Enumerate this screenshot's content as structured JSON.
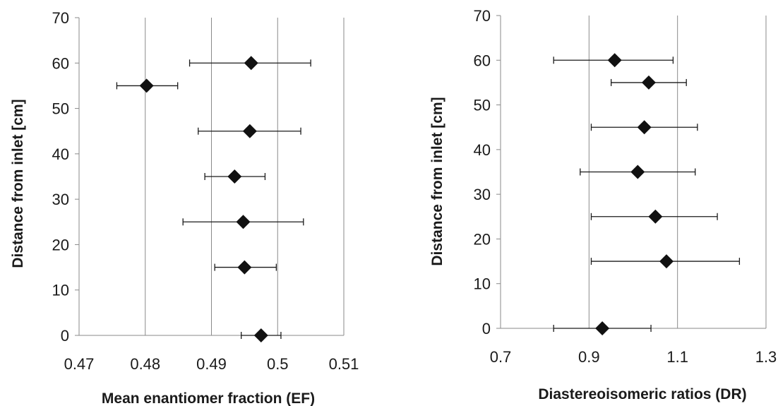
{
  "chart_data": [
    {
      "type": "scatter",
      "xlabel": "Mean enantiomer fraction  (EF)",
      "ylabel": "Distance from inlet [cm]",
      "xlim": [
        0.47,
        0.51
      ],
      "ylim": [
        0,
        70
      ],
      "x_ticks": [
        "0.47",
        "0.48",
        "0.49",
        "0.5",
        "0.51"
      ],
      "y_ticks": [
        "0",
        "10",
        "20",
        "30",
        "40",
        "50",
        "60",
        "70"
      ],
      "grid": "vertical",
      "marker": "diamond",
      "points": [
        {
          "x": 0.4975,
          "y": 0,
          "err_low": 0.4945,
          "err_high": 0.5005
        },
        {
          "x": 0.495,
          "y": 15,
          "err_low": 0.4905,
          "err_high": 0.4998
        },
        {
          "x": 0.4948,
          "y": 25,
          "err_low": 0.4857,
          "err_high": 0.5039
        },
        {
          "x": 0.4935,
          "y": 35,
          "err_low": 0.489,
          "err_high": 0.4981
        },
        {
          "x": 0.4958,
          "y": 45,
          "err_low": 0.488,
          "err_high": 0.5035
        },
        {
          "x": 0.4802,
          "y": 55,
          "err_low": 0.4757,
          "err_high": 0.4849
        },
        {
          "x": 0.496,
          "y": 60,
          "err_low": 0.4867,
          "err_high": 0.505
        }
      ]
    },
    {
      "type": "scatter",
      "xlabel": "Diastereoisomeric ratios   (DR)",
      "ylabel": "Distance from inlet [cm]",
      "xlim": [
        0.7,
        1.3
      ],
      "ylim": [
        0,
        70
      ],
      "x_ticks": [
        "0.7",
        "0.9",
        "1.1",
        "1.3"
      ],
      "y_ticks": [
        "0",
        "10",
        "20",
        "30",
        "40",
        "50",
        "60",
        "70"
      ],
      "grid": "vertical",
      "marker": "diamond",
      "points": [
        {
          "x": 0.93,
          "y": 0,
          "err_low": 0.82,
          "err_high": 1.04
        },
        {
          "x": 1.075,
          "y": 15,
          "err_low": 0.905,
          "err_high": 1.24
        },
        {
          "x": 1.05,
          "y": 25,
          "err_low": 0.905,
          "err_high": 1.19
        },
        {
          "x": 1.01,
          "y": 35,
          "err_low": 0.88,
          "err_high": 1.14
        },
        {
          "x": 1.025,
          "y": 45,
          "err_low": 0.905,
          "err_high": 1.145
        },
        {
          "x": 1.035,
          "y": 55,
          "err_low": 0.95,
          "err_high": 1.12
        },
        {
          "x": 0.958,
          "y": 60,
          "err_low": 0.82,
          "err_high": 1.09
        }
      ]
    }
  ]
}
